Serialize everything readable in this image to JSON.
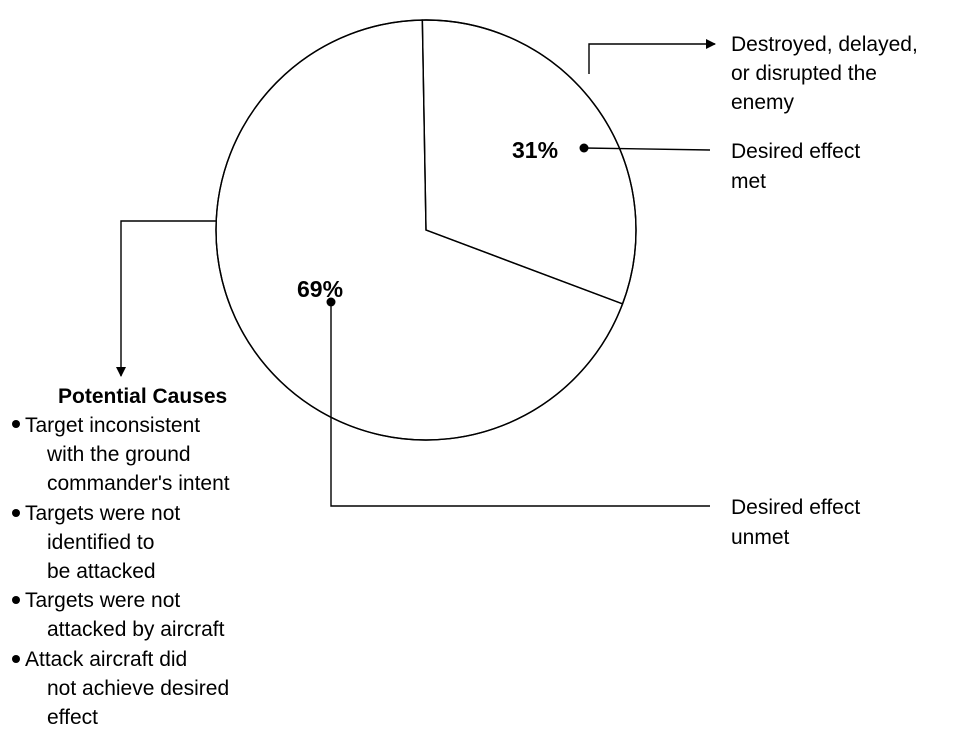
{
  "chart_data": {
    "type": "pie",
    "slices": [
      {
        "name": "Desired effect met",
        "value": 31,
        "label": "31%"
      },
      {
        "name": "Desired effect unmet",
        "value": 69,
        "label": "69%"
      }
    ],
    "annotations": {
      "met_label": [
        "Desired effect",
        "met"
      ],
      "unmet_label": [
        "Desired effect",
        "unmet"
      ],
      "met_outcome": [
        "Destroyed, delayed,",
        "or disrupted the",
        "enemy"
      ],
      "causes": {
        "title": "Potential Causes",
        "items": [
          [
            "Target inconsistent",
            "with the ground",
            "commander's intent"
          ],
          [
            "Targets were not",
            "identified to",
            "be attacked"
          ],
          [
            "Targets were not",
            "attacked by aircraft"
          ],
          [
            "Attack aircraft did",
            "not achieve desired",
            "effect"
          ]
        ]
      }
    },
    "colors": {
      "stroke": "#000000",
      "fill": "#ffffff"
    }
  }
}
